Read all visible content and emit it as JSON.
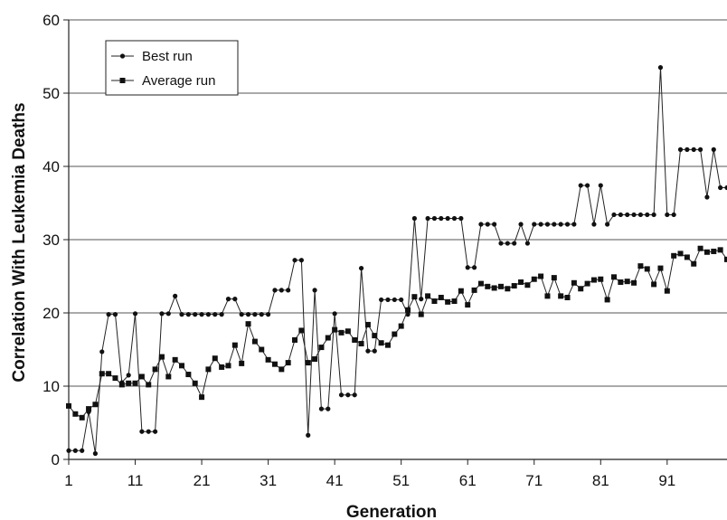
{
  "chart_data": {
    "type": "line",
    "title": "",
    "xlabel": "Generation",
    "ylabel": "Correlation With Leukemia Deaths",
    "xlim": [
      1,
      100
    ],
    "ylim": [
      0,
      60
    ],
    "xticks": [
      "1",
      "11",
      "21",
      "31",
      "41",
      "51",
      "61",
      "71",
      "81",
      "91"
    ],
    "yticks": [
      "0",
      "10",
      "20",
      "30",
      "40",
      "50",
      "60"
    ],
    "grid": "horizontal",
    "legend_position": "top-left",
    "x": [
      1,
      2,
      3,
      4,
      5,
      6,
      7,
      8,
      9,
      10,
      11,
      12,
      13,
      14,
      15,
      16,
      17,
      18,
      19,
      20,
      21,
      22,
      23,
      24,
      25,
      26,
      27,
      28,
      29,
      30,
      31,
      32,
      33,
      34,
      35,
      36,
      37,
      38,
      39,
      40,
      41,
      42,
      43,
      44,
      45,
      46,
      47,
      48,
      49,
      50,
      51,
      52,
      53,
      54,
      55,
      56,
      57,
      58,
      59,
      60,
      61,
      62,
      63,
      64,
      65,
      66,
      67,
      68,
      69,
      70,
      71,
      72,
      73,
      74,
      75,
      76,
      77,
      78,
      79,
      80,
      81,
      82,
      83,
      84,
      85,
      86,
      87,
      88,
      89,
      90,
      91,
      92,
      93,
      94,
      95,
      96,
      97,
      98,
      99,
      100
    ],
    "series": [
      {
        "name": "Best run",
        "marker": "circle",
        "values": [
          1.2,
          1.2,
          1.2,
          6.5,
          0.8,
          14.7,
          19.8,
          19.8,
          10.5,
          11.5,
          19.9,
          3.8,
          3.8,
          3.8,
          19.9,
          19.9,
          22.3,
          19.8,
          19.8,
          19.8,
          19.8,
          19.8,
          19.8,
          19.8,
          21.9,
          21.9,
          19.8,
          19.8,
          19.8,
          19.8,
          19.8,
          23.1,
          23.1,
          23.1,
          27.2,
          27.2,
          3.3,
          23.1,
          6.9,
          6.9,
          19.9,
          8.8,
          8.8,
          8.8,
          26.1,
          14.8,
          14.8,
          21.8,
          21.8,
          21.8,
          21.8,
          19.8,
          32.9,
          21.9,
          32.9,
          32.9,
          32.9,
          32.9,
          32.9,
          32.9,
          26.2,
          26.2,
          32.1,
          32.1,
          32.1,
          29.5,
          29.5,
          29.5,
          32.1,
          29.5,
          32.1,
          32.1,
          32.1,
          32.1,
          32.1,
          32.1,
          32.1,
          37.4,
          37.4,
          32.1,
          37.4,
          32.1,
          33.4,
          33.4,
          33.4,
          33.4,
          33.4,
          33.4,
          33.4,
          53.5,
          33.4,
          33.4,
          42.3,
          42.3,
          42.3,
          42.3,
          35.8,
          42.3,
          37.1,
          37.1
        ]
      },
      {
        "name": "Average run",
        "marker": "square",
        "values": [
          7.3,
          6.2,
          5.7,
          6.9,
          7.5,
          11.7,
          11.7,
          11.1,
          10.2,
          10.4,
          10.4,
          11.3,
          10.2,
          12.3,
          14,
          11.3,
          13.6,
          12.8,
          11.6,
          10.4,
          8.5,
          12.3,
          13.8,
          12.6,
          12.8,
          15.6,
          13.1,
          18.5,
          16.1,
          15,
          13.6,
          13,
          12.3,
          13.2,
          16.3,
          17.6,
          13.2,
          13.7,
          15.3,
          16.6,
          17.7,
          17.3,
          17.5,
          16.3,
          15.8,
          18.4,
          16.9,
          15.9,
          15.6,
          17.1,
          18.2,
          20.4,
          22.2,
          19.8,
          22.3,
          21.6,
          22.1,
          21.5,
          21.6,
          23,
          21.1,
          23.1,
          24,
          23.6,
          23.4,
          23.6,
          23.3,
          23.7,
          24.2,
          23.8,
          24.6,
          25,
          22.3,
          24.8,
          22.3,
          22.1,
          24.1,
          23.3,
          24,
          24.5,
          24.6,
          21.8,
          24.9,
          24.2,
          24.3,
          24.1,
          26.4,
          26,
          23.9,
          26.1,
          23,
          27.8,
          28.1,
          27.6,
          26.7,
          28.8,
          28.3,
          28.4,
          28.6,
          27.3
        ]
      }
    ]
  }
}
